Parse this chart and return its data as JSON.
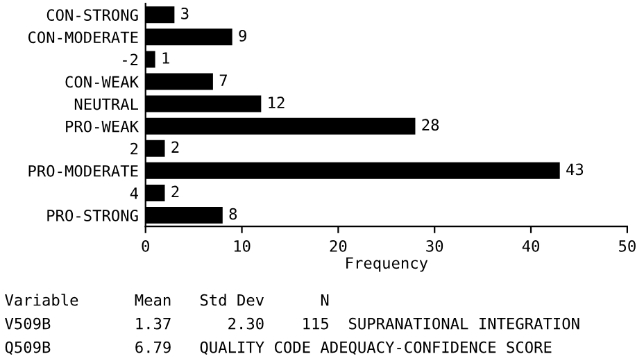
{
  "chart_data": {
    "type": "bar",
    "orientation": "horizontal",
    "categories": [
      "CON-STRONG",
      "CON-MODERATE",
      "-2",
      "CON-WEAK",
      "NEUTRAL",
      "PRO-WEAK",
      "2",
      "PRO-MODERATE",
      "4",
      "PRO-STRONG"
    ],
    "values": [
      3,
      9,
      1,
      7,
      12,
      28,
      2,
      43,
      2,
      8
    ],
    "color": "#000000",
    "data_labels": true,
    "xlim": [
      0,
      50
    ],
    "xticks": [
      0,
      10,
      20,
      30,
      40,
      50
    ],
    "xlabel": "Frequency",
    "grid": false,
    "legend": false,
    "annotations": [
      "Variable      Mean   Std Dev      N",
      "V509B         1.37      2.30    115  SUPRANATIONAL INTEGRATION",
      "Q509B         6.79   QUALITY CODE ADEQUACY-CONFIDENCE SCORE"
    ]
  }
}
